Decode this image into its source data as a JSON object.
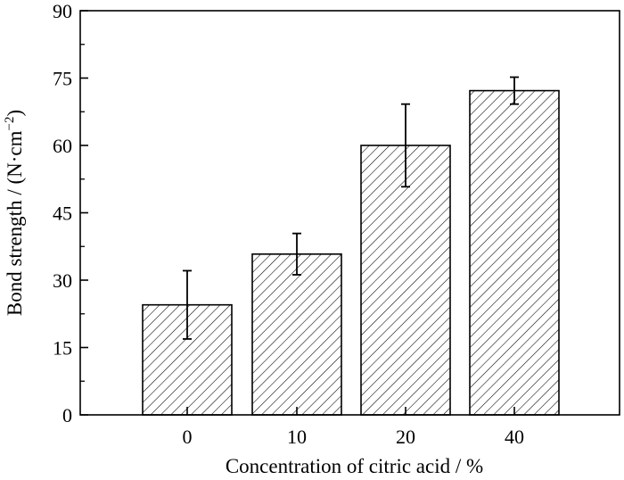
{
  "chart_data": {
    "type": "bar",
    "categories": [
      "0",
      "10",
      "20",
      "40"
    ],
    "values": [
      24.5,
      35.8,
      60.0,
      72.2
    ],
    "error": [
      7.6,
      4.6,
      9.2,
      3.0
    ],
    "xlabel": "Concentration of citric acid / %",
    "ylabel_main": "Bond strength / (N·cm",
    "ylabel_sup": "−2",
    "ylabel_end": ")",
    "ylim": [
      0,
      90
    ],
    "yticks": [
      0,
      15,
      30,
      45,
      60,
      75,
      90
    ],
    "grid": false,
    "legend": "none",
    "bar_fill": "hatched diagonal",
    "colors": {
      "bar_edge": "#000000",
      "hatch": "#000000",
      "background": "#ffffff"
    }
  }
}
